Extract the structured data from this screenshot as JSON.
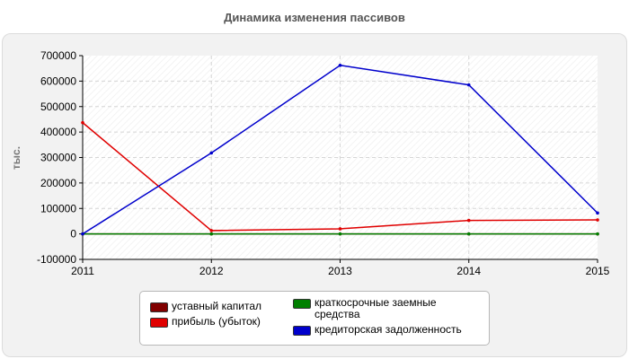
{
  "chart_data": {
    "type": "line",
    "title": "Динамика изменения пассивов",
    "ylabel": "тыс.",
    "xlabel": "",
    "categories": [
      "2011",
      "2012",
      "2013",
      "2014",
      "2015"
    ],
    "ylim": [
      -100000,
      700000
    ],
    "yticks": [
      700000,
      600000,
      500000,
      400000,
      300000,
      200000,
      100000,
      0,
      -100000
    ],
    "grid": true,
    "legend_position": "bottom",
    "series": [
      {
        "name": "уставный капитал",
        "color": "#800000",
        "values": [
          10,
          10,
          10,
          10,
          10
        ]
      },
      {
        "name": "прибыль (убыток)",
        "color": "#e00000",
        "values": [
          437000,
          13000,
          20000,
          53000,
          55000
        ]
      },
      {
        "name": "краткосрочные заемные средства",
        "color": "#008000",
        "values": [
          0,
          0,
          0,
          0,
          0
        ]
      },
      {
        "name": "кредиторская задолженность",
        "color": "#0000cc",
        "values": [
          0,
          318000,
          662000,
          585000,
          82000
        ]
      }
    ]
  }
}
